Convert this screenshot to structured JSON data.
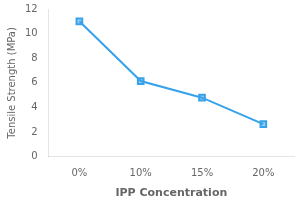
{
  "chart_data": {
    "type": "line",
    "categories": [
      "0%",
      "10%",
      "15%",
      "20%"
    ],
    "values": [
      11.0,
      6.15,
      4.8,
      2.65
    ],
    "xlabel": "IPP Concentration",
    "ylabel": "Tensile Strength (MPa)",
    "ylim": [
      0,
      12
    ],
    "yticks": [
      0,
      2,
      4,
      6,
      8,
      10,
      12
    ],
    "grid": false,
    "marker": "square"
  }
}
